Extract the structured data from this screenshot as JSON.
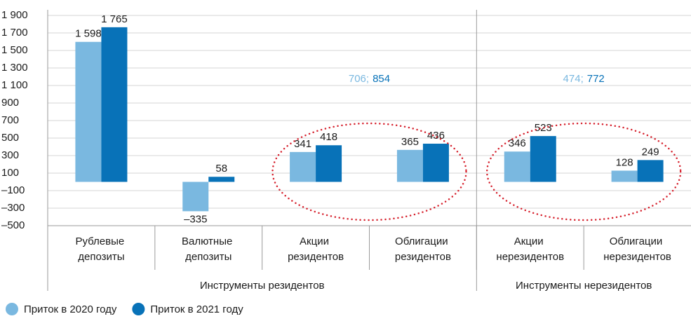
{
  "chart_data": {
    "type": "bar",
    "categories": [
      "Рублевые депозиты",
      "Валютные депозиты",
      "Акции резидентов",
      "Облигации резидентов",
      "Акции нерезидентов",
      "Облигации нерезидентов"
    ],
    "groups": [
      {
        "label": "Инструменты резидентов",
        "size": 4
      },
      {
        "label": "Инструменты нерезидентов",
        "size": 2
      }
    ],
    "series": [
      {
        "name": "Приток в 2020 году",
        "color": "#7ab8e0",
        "values": [
          1598,
          -335,
          341,
          365,
          346,
          128
        ],
        "value_labels": [
          "1 598",
          "–335",
          "341",
          "365",
          "346",
          "128"
        ]
      },
      {
        "name": "Приток в 2021 году",
        "color": "#0872b8",
        "values": [
          1765,
          58,
          418,
          436,
          523,
          249
        ],
        "value_labels": [
          "1 765",
          "58",
          "418",
          "436",
          "523",
          "249"
        ]
      }
    ],
    "annotations": [
      {
        "parts": [
          "706;",
          "854"
        ]
      },
      {
        "parts": [
          "474;",
          "772"
        ]
      }
    ],
    "ylim": [
      -500,
      1900
    ],
    "yticks": [
      {
        "value": -500,
        "label": "–500"
      },
      {
        "value": -300,
        "label": "–300"
      },
      {
        "value": -100,
        "label": "–100"
      },
      100,
      300,
      500,
      700,
      900,
      {
        "value": 1100,
        "label": "1 100"
      },
      {
        "value": 1300,
        "label": "1 300"
      },
      {
        "value": 1500,
        "label": "1 500"
      },
      {
        "value": 1700,
        "label": "1 700"
      },
      {
        "value": 1900,
        "label": "1 900"
      }
    ],
    "grid": true
  }
}
